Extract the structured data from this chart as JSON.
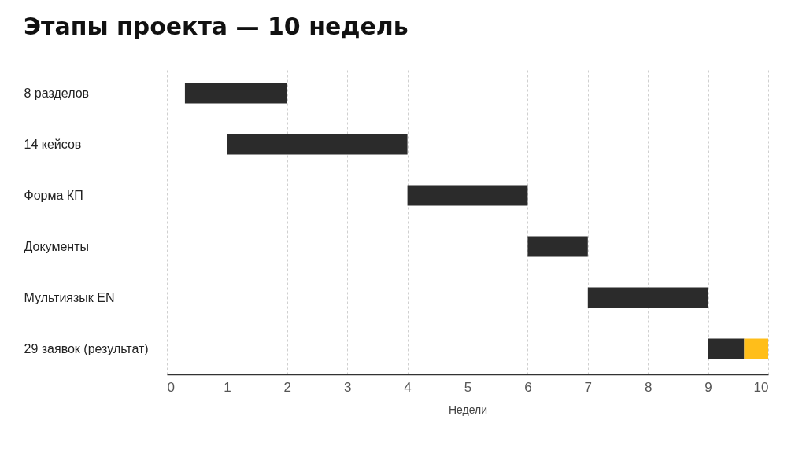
{
  "chart_data": {
    "type": "bar",
    "orientation": "horizontal",
    "title": "Этапы проекта — 10 недель",
    "xlabel": "Недели",
    "categories": [
      "8 разделов",
      "14 кейсов",
      "Форма КП",
      "Документы",
      "Мультиязык EN",
      "29 заявок (результат)"
    ],
    "series": [
      {
        "color": "#2b2b2b",
        "base": [
          0.3,
          1,
          4,
          6,
          7,
          9
        ],
        "values": [
          1.7,
          3,
          2,
          1,
          2,
          0.6
        ]
      },
      {
        "color": "#ffbe1a",
        "base": [
          null,
          null,
          null,
          null,
          null,
          9.6
        ],
        "values": [
          null,
          null,
          null,
          null,
          null,
          0.4
        ]
      }
    ],
    "xlim": [
      0,
      10
    ],
    "xticks": [
      0,
      1,
      2,
      3,
      4,
      5,
      6,
      7,
      8,
      9,
      10
    ],
    "grid": "x"
  }
}
